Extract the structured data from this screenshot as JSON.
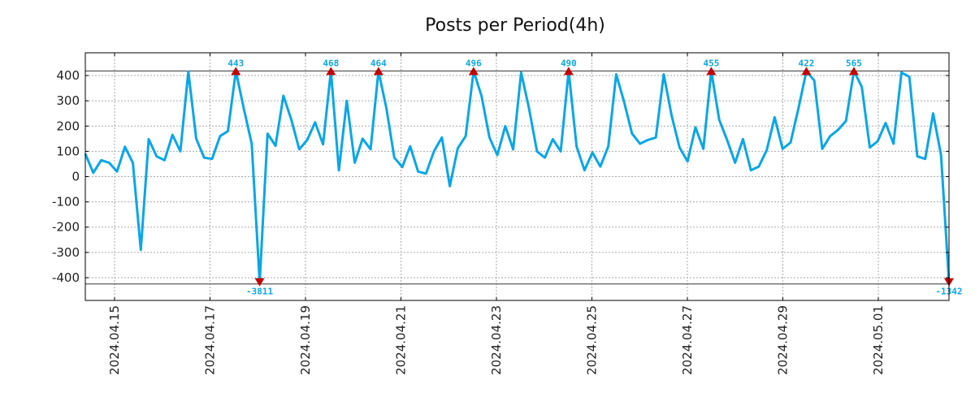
{
  "chart_data": {
    "type": "line",
    "title": "Posts per Period(4h)",
    "xlabel": "",
    "ylabel": "",
    "ylim": [
      -490,
      490
    ],
    "grid": true,
    "series_color": "#0aa6e6",
    "marker_color": "#c40000",
    "y_ticks": [
      400,
      300,
      200,
      100,
      0,
      -100,
      -200,
      -300,
      -400
    ],
    "y_tick_labels": [
      "400",
      "300",
      "200",
      "100",
      "0",
      "-100",
      "-200",
      "-300",
      "-400"
    ],
    "x_tick_labels": [
      "2024.04.15",
      "2024.04.17",
      "2024.04.19",
      "2024.04.21",
      "2024.04.23",
      "2024.04.25",
      "2024.04.27",
      "2024.04.29",
      "2024.05.01"
    ],
    "clip_lines": [
      418,
      -425
    ],
    "values": [
      90,
      15,
      65,
      55,
      20,
      118,
      55,
      -290,
      148,
      80,
      65,
      165,
      100,
      415,
      150,
      75,
      70,
      160,
      180,
      418,
      270,
      130,
      -418,
      170,
      122,
      320,
      225,
      108,
      145,
      215,
      128,
      418,
      25,
      300,
      55,
      150,
      108,
      418,
      270,
      75,
      38,
      120,
      20,
      12,
      100,
      155,
      -38,
      112,
      160,
      418,
      320,
      155,
      85,
      200,
      108,
      412,
      270,
      100,
      75,
      148,
      100,
      418,
      120,
      25,
      95,
      40,
      120,
      405,
      295,
      170,
      130,
      145,
      155,
      405,
      240,
      115,
      60,
      195,
      110,
      418,
      225,
      145,
      55,
      148,
      25,
      40,
      105,
      235,
      110,
      135,
      270,
      418,
      380,
      110,
      160,
      185,
      220,
      418,
      355,
      115,
      140,
      212,
      130,
      412,
      395,
      80,
      70,
      250,
      85,
      -418
    ],
    "peak_markers": [
      {
        "index": 19,
        "label": "443",
        "direction": "up"
      },
      {
        "index": 22,
        "label": "-3811",
        "direction": "down"
      },
      {
        "index": 31,
        "label": "468",
        "direction": "up"
      },
      {
        "index": 37,
        "label": "464",
        "direction": "up"
      },
      {
        "index": 49,
        "label": "496",
        "direction": "up"
      },
      {
        "index": 61,
        "label": "490",
        "direction": "up"
      },
      {
        "index": 79,
        "label": "455",
        "direction": "up"
      },
      {
        "index": 91,
        "label": "422",
        "direction": "up"
      },
      {
        "index": 97,
        "label": "565",
        "direction": "up"
      },
      {
        "index": 109,
        "label": "-1342",
        "direction": "down"
      }
    ]
  }
}
